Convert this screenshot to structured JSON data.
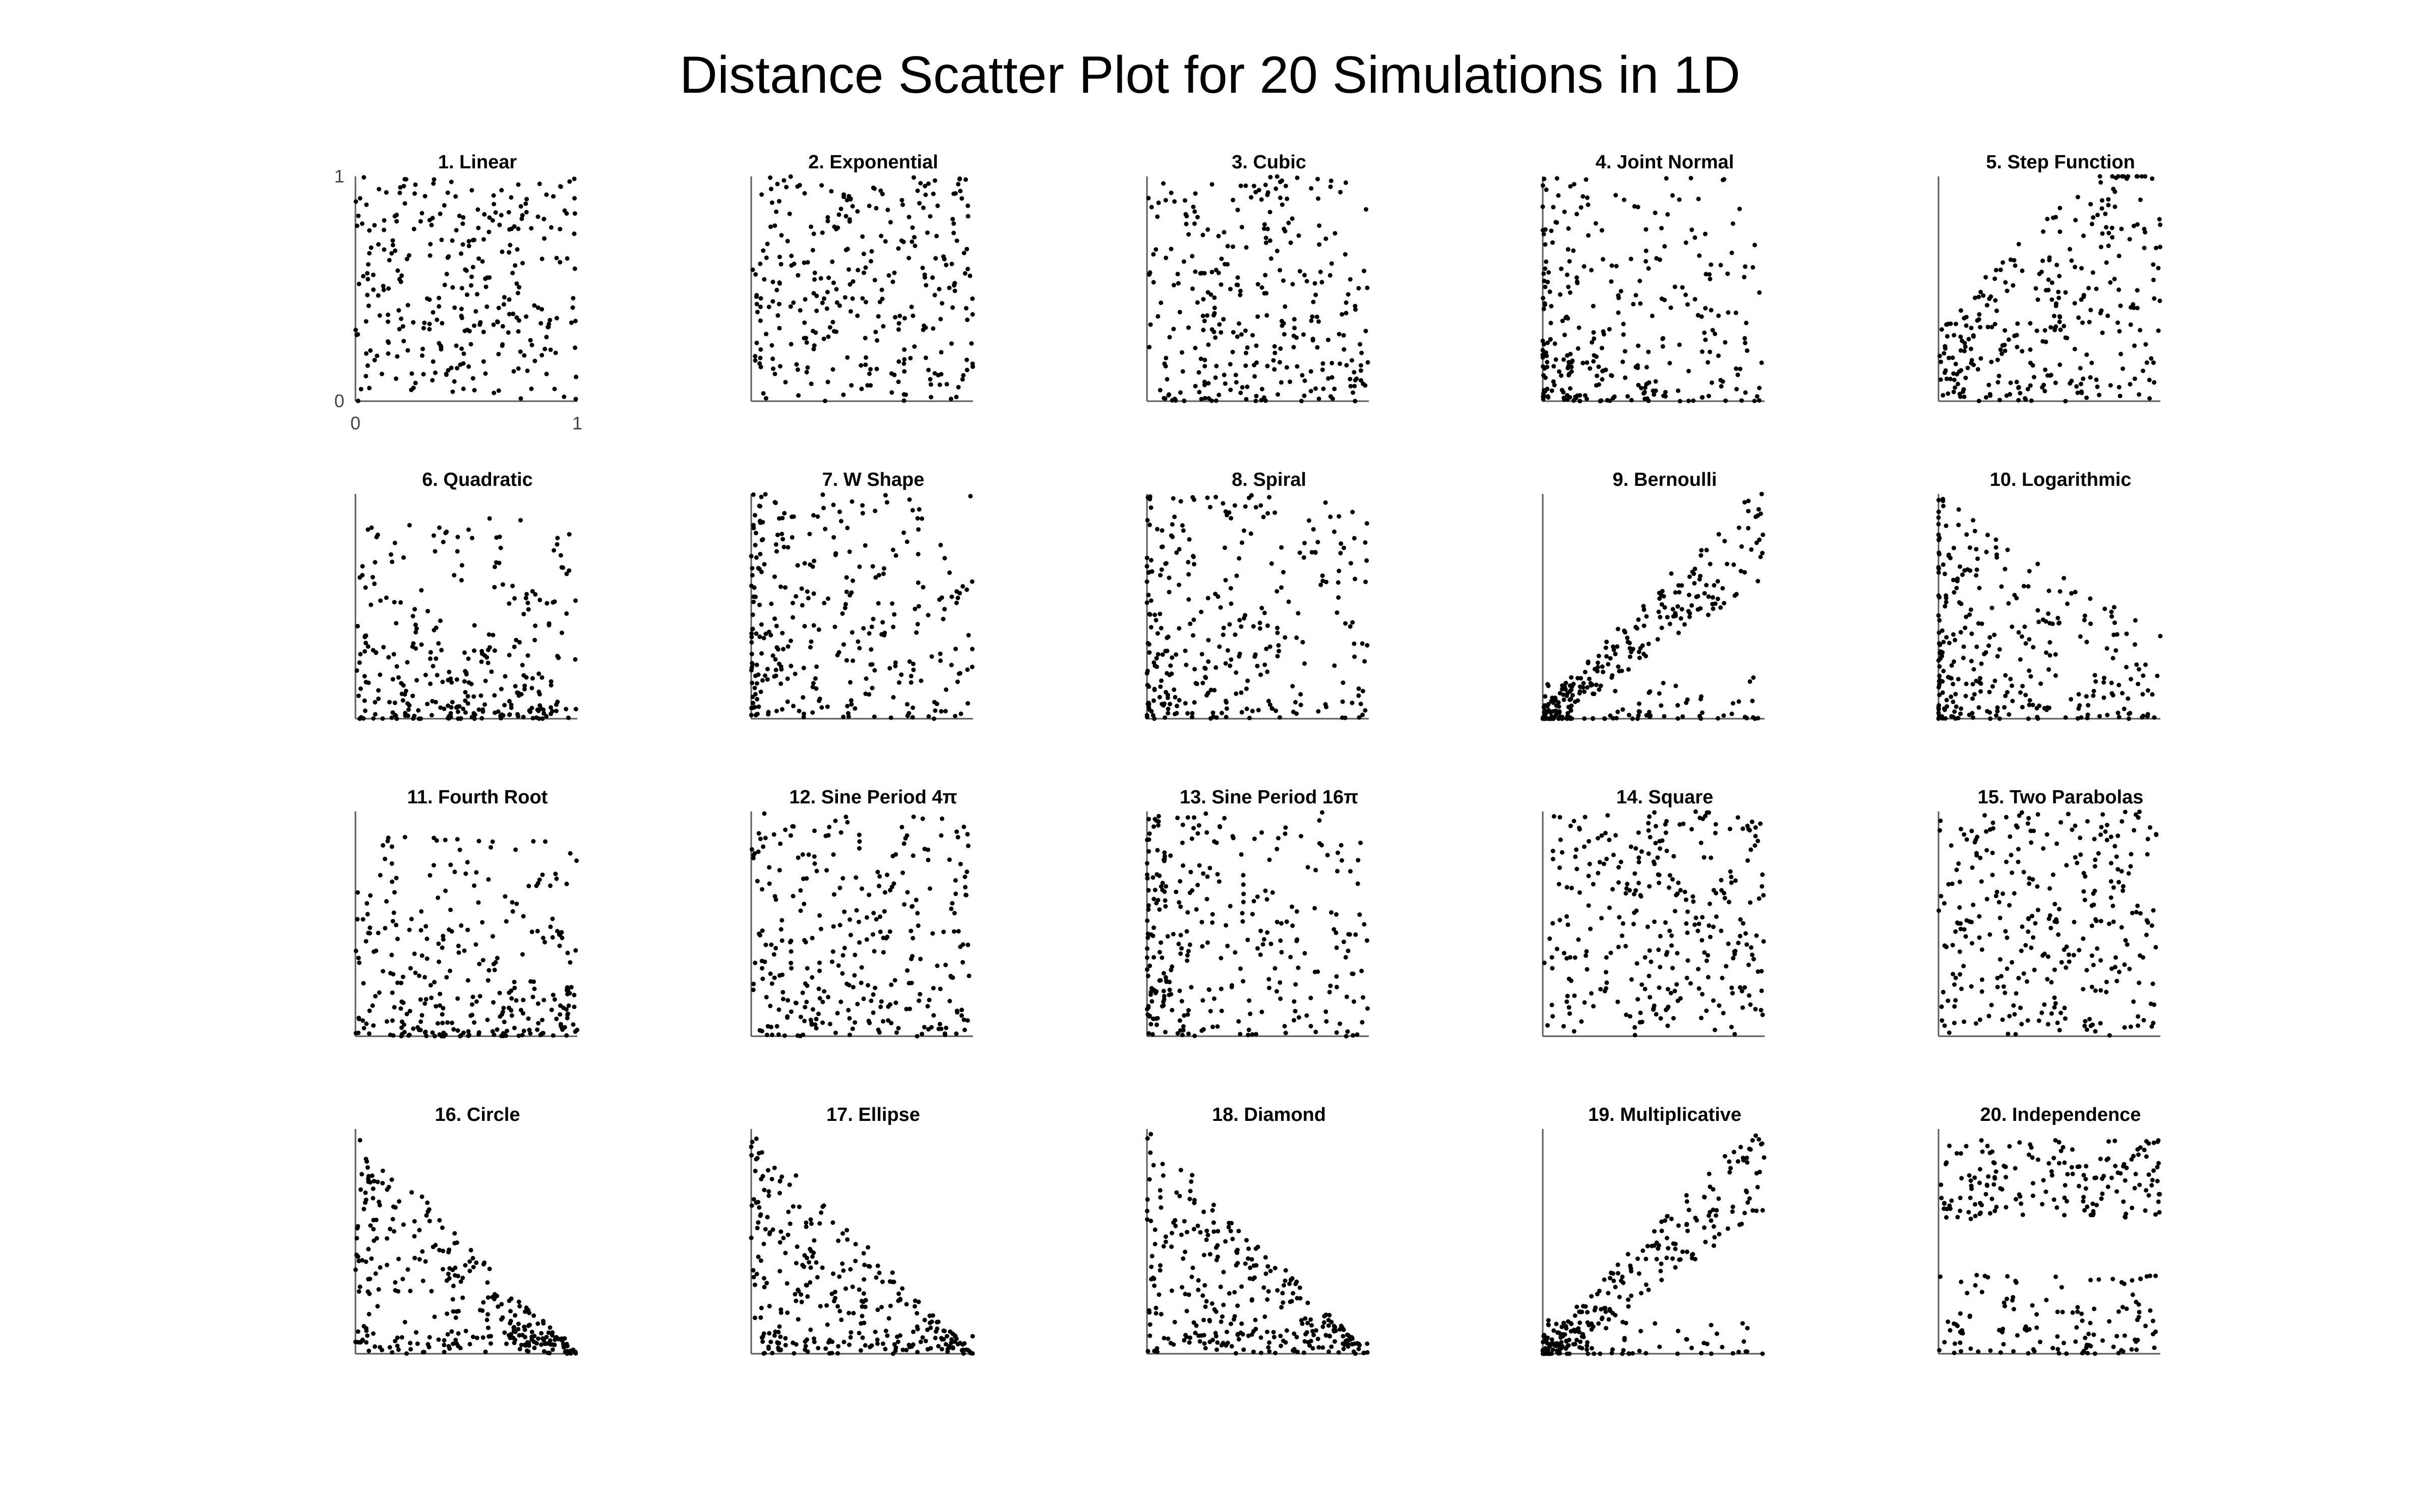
{
  "page": {
    "background": "#ffffff"
  },
  "chart_data": {
    "type": "scatter",
    "title": "Distance Scatter Plot for 20 Simulations in 1D",
    "xlabel": "",
    "ylabel": "",
    "layout": "small multiples, 4 rows by 5 columns",
    "marker_color": "#000000",
    "axis_color": "#5a5a5a",
    "grid": false,
    "axis_ranges": {
      "x": [
        0,
        1
      ],
      "y": [
        0,
        1
      ]
    },
    "tick_labels": {
      "x": [
        "0",
        "1"
      ],
      "y": [
        "0",
        "1"
      ],
      "shown_on_panel": 1
    },
    "panels": [
      {
        "id": 1,
        "title": "1. Linear",
        "shape": "uniform",
        "seed": 11
      },
      {
        "id": 2,
        "title": "2. Exponential",
        "shape": "uniform",
        "seed": 12
      },
      {
        "id": 3,
        "title": "3. Cubic",
        "shape": "uniform-low",
        "seed": 13
      },
      {
        "id": 4,
        "title": "4. Joint Normal",
        "shape": "cluster-corner",
        "seed": 14
      },
      {
        "id": 5,
        "title": "5. Step Function",
        "shape": "wedge-up",
        "seed": 15
      },
      {
        "id": 6,
        "title": "6. Quadratic",
        "shape": "low-band",
        "seed": 16
      },
      {
        "id": 7,
        "title": "7. W Shape",
        "shape": "left-heavy",
        "seed": 17
      },
      {
        "id": 8,
        "title": "8. Spiral",
        "shape": "left-heavy",
        "seed": 18
      },
      {
        "id": 9,
        "title": "9. Bernoulli",
        "shape": "diagonal",
        "seed": 19
      },
      {
        "id": 10,
        "title": "10. Logarithmic",
        "shape": "left-steep",
        "seed": 20
      },
      {
        "id": 11,
        "title": "11. Fourth Root",
        "shape": "low-band",
        "seed": 21
      },
      {
        "id": 12,
        "title": "12. Sine Period 4π",
        "shape": "uniform-low",
        "seed": 22
      },
      {
        "id": 13,
        "title": "13. Sine Period 16π",
        "shape": "left-heavy",
        "seed": 23
      },
      {
        "id": 14,
        "title": "14. Square",
        "shape": "uniform",
        "seed": 24
      },
      {
        "id": 15,
        "title": "15. Two Parabolas",
        "shape": "uniform",
        "seed": 25
      },
      {
        "id": 16,
        "title": "16. Circle",
        "shape": "triangle-down",
        "seed": 26
      },
      {
        "id": 17,
        "title": "17. Ellipse",
        "shape": "triangle-down",
        "seed": 27
      },
      {
        "id": 18,
        "title": "18. Diamond",
        "shape": "triangle-down",
        "seed": 28
      },
      {
        "id": 19,
        "title": "19. Multiplicative",
        "shape": "diagonal",
        "seed": 29
      },
      {
        "id": 20,
        "title": "20. Independence",
        "shape": "two-bands",
        "seed": 30
      }
    ],
    "points_per_panel": 300,
    "note_points": "individual point positions are not readable; points are sampled to mimic each panel's distribution shape"
  }
}
